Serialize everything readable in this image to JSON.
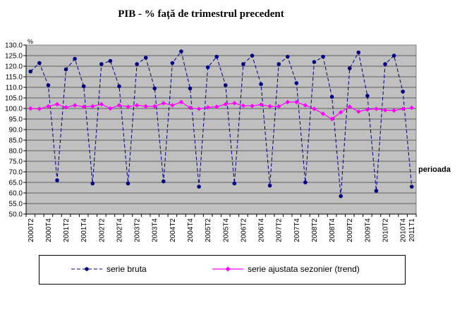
{
  "chart_data": {
    "type": "line",
    "title": "PIB - % față de trimestrul precedent",
    "xlabel": "perioada",
    "ylabel": "",
    "y_unit_mark": "%",
    "ylim": [
      50,
      130
    ],
    "yticks": [
      "130.0",
      "125.0",
      "120.0",
      "115.0",
      "110.0",
      "105.0",
      "100.0",
      "95.0",
      "90.0",
      "85.0",
      "80.0",
      "75.0",
      "70.0",
      "65.0",
      "60.0",
      "55.0",
      "50.0"
    ],
    "categories": [
      "2000T2",
      "2000T3",
      "2000T4",
      "2001T1",
      "2001T2",
      "2001T3",
      "2001T4",
      "2002T1",
      "2002T2",
      "2002T3",
      "2002T4",
      "2003T1",
      "2003T2",
      "2003T3",
      "2003T4",
      "2004T1",
      "2004T2",
      "2004T3",
      "2004T4",
      "2005T1",
      "2005T2",
      "2005T3",
      "2005T4",
      "2006T1",
      "2006T2",
      "2006T3",
      "2006T4",
      "2007T1",
      "2007T2",
      "2007T3",
      "2007T4",
      "2008T1",
      "2008T2",
      "2008T3",
      "2008T4",
      "2009T1",
      "2009T2",
      "2009T3",
      "2009T4",
      "2010T1",
      "2010T2",
      "2010T3",
      "2010T4",
      "2011T1"
    ],
    "tick_labels": [
      "2000T2",
      "2000T4",
      "2001T2",
      "2001T4",
      "2002T2",
      "2002T4",
      "2003T2",
      "2003T4",
      "2004T2",
      "2004T4",
      "2005T2",
      "2005T4",
      "2006T2",
      "2006T4",
      "2007T2",
      "2007T4",
      "2008T2",
      "2008T4",
      "2009T2",
      "2009T4",
      "2010T2",
      "2010T4",
      "2011T1"
    ],
    "series": [
      {
        "name": "serie bruta",
        "color": "#000080",
        "style": "dashed",
        "marker": "circle",
        "values": [
          117.5,
          121.5,
          111.0,
          66.0,
          118.5,
          123.5,
          110.5,
          64.5,
          121.0,
          122.5,
          110.5,
          64.5,
          121.0,
          124.0,
          109.5,
          65.5,
          121.5,
          127.0,
          109.5,
          63.0,
          119.5,
          124.5,
          111.0,
          64.5,
          121.0,
          125.0,
          111.5,
          63.5,
          121.0,
          124.5,
          112.0,
          65.0,
          122.0,
          124.5,
          105.5,
          58.5,
          119.0,
          126.5,
          106.0,
          61.0,
          121.0,
          125.0,
          108.0,
          63.0
        ]
      },
      {
        "name": "serie ajustata sezonier (trend)",
        "color": "#FF00FF",
        "style": "solid",
        "marker": "diamond",
        "values": [
          100.0,
          99.8,
          101.0,
          102.0,
          100.5,
          101.5,
          100.8,
          101.0,
          102.0,
          100.0,
          101.5,
          100.8,
          101.5,
          101.0,
          101.0,
          102.5,
          101.5,
          103.0,
          100.3,
          99.8,
          100.5,
          100.8,
          102.0,
          102.5,
          101.3,
          101.2,
          101.8,
          101.0,
          101.0,
          103.0,
          103.0,
          101.5,
          99.8,
          97.5,
          95.0,
          98.2,
          100.8,
          98.5,
          99.5,
          99.8,
          99.2,
          99.0,
          99.8,
          100.3
        ]
      }
    ],
    "plot_background": "#C0C0C0",
    "legend_position": "bottom"
  }
}
